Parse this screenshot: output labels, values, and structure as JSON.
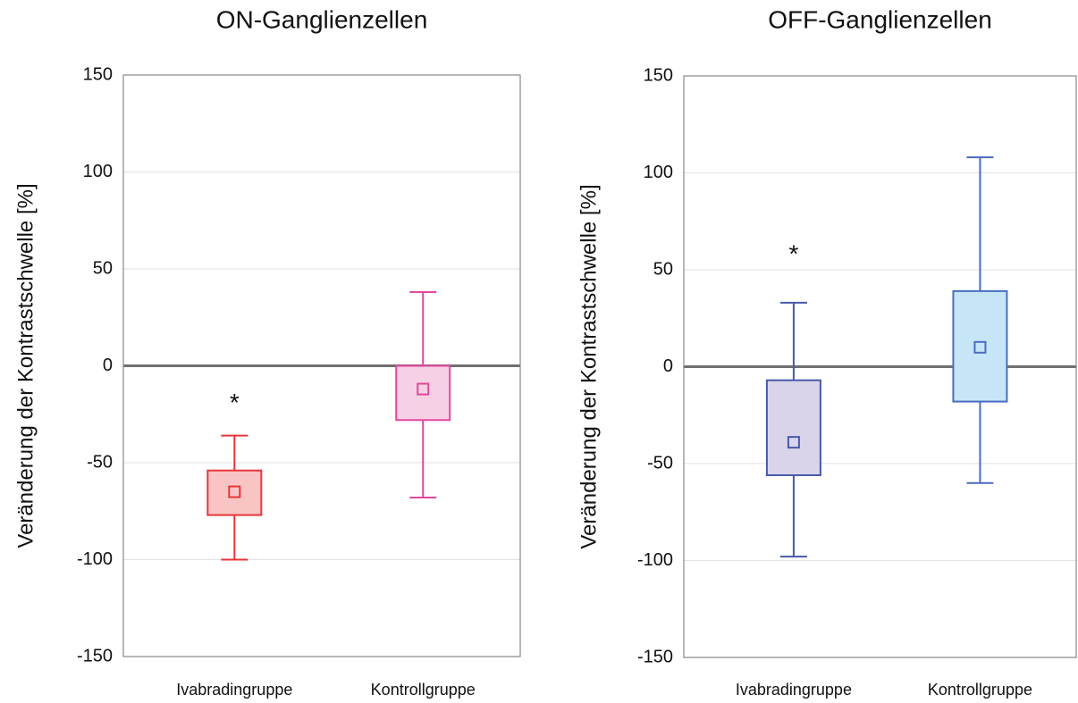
{
  "chart_data": [
    {
      "type": "box",
      "title": "ON-Ganglienzellen",
      "ylabel": "Veränderung der Kontrastschwelle [%]",
      "categories": [
        "Ivabradingruppe",
        "Kontrollgruppe"
      ],
      "boxes": [
        {
          "whislo": -100,
          "q1": -77,
          "q3": -54,
          "whishi": -36,
          "mean": -65
        },
        {
          "whislo": -68,
          "q1": -28,
          "q3": 0,
          "whishi": 38,
          "mean": -12
        }
      ],
      "colors": [
        "#e8363a",
        "#e2489e"
      ],
      "fill_colors": [
        "#f8c4c4",
        "#f6d0e4"
      ],
      "annotations": [
        {
          "text": "*",
          "category": "Ivabradingruppe",
          "y": -17
        }
      ],
      "ylim": [
        -150,
        150
      ],
      "yticks": [
        -150,
        -100,
        -50,
        0,
        50,
        100,
        150
      ],
      "grid": true
    },
    {
      "type": "box",
      "title": "OFF-Ganglienzellen",
      "ylabel": "Veränderung der Kontrastschwelle [%]",
      "categories": [
        "Ivabradingruppe",
        "Kontrollgruppe"
      ],
      "boxes": [
        {
          "whislo": -98,
          "q1": -56,
          "q3": -7,
          "whishi": 33,
          "mean": -39
        },
        {
          "whislo": -60,
          "q1": -18,
          "q3": 39,
          "whishi": 108,
          "mean": 10
        }
      ],
      "colors": [
        "#4a5aa8",
        "#4a6cc0"
      ],
      "fill_colors": [
        "#d9d4ea",
        "#c6e6f7"
      ],
      "annotations": [
        {
          "text": "*",
          "category": "Ivabradingruppe",
          "y": 60
        }
      ],
      "ylim": [
        -150,
        150
      ],
      "yticks": [
        -150,
        -100,
        -50,
        0,
        50,
        100,
        150
      ],
      "grid": true
    }
  ]
}
